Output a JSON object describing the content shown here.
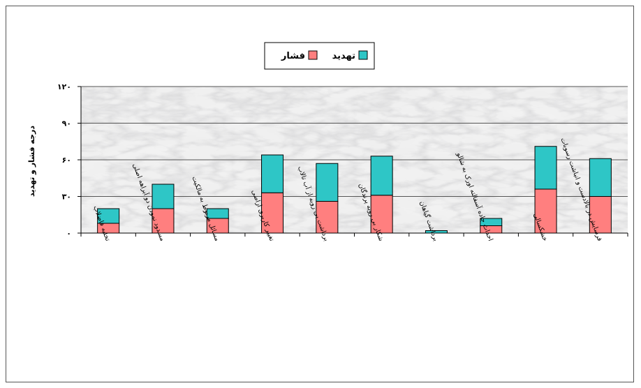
{
  "chart_data": {
    "type": "bar",
    "stacked": true,
    "categories": [
      "تخلیه فاضلاب",
      "مسدود نمودن دو آبراهه اصلی",
      "مسائل مربوط به مالکیت",
      "تغییر کاربری اراضی",
      "برداشت بی رویه از آب تالاب",
      "شکار بی رویه پرندگان",
      "برداشت گیاهان",
      "احداث جاده آسفالته اورک به شالو",
      "خشکسالی",
      "فرسایش در بالادست و انباشت رسوبات"
    ],
    "series": [
      {
        "name": "فشار",
        "color": "#ff7f7f",
        "values": [
          8,
          20,
          12,
          33,
          26,
          31,
          0,
          6,
          36,
          30
        ]
      },
      {
        "name": "تهدید",
        "color": "#2ec6c6",
        "values": [
          12,
          20,
          8,
          31,
          31,
          32,
          2,
          6,
          35,
          31
        ]
      }
    ],
    "yticks": [
      "۰",
      "۳۰",
      "۶۰",
      "۹۰",
      "۱۲۰"
    ],
    "ylim": [
      0,
      120
    ],
    "ylabel": "درجه فشار و تهدید",
    "grid": true,
    "legend_position": "top-center",
    "legend_order": [
      "تهدید",
      "فشار"
    ],
    "background": "marble-texture"
  }
}
